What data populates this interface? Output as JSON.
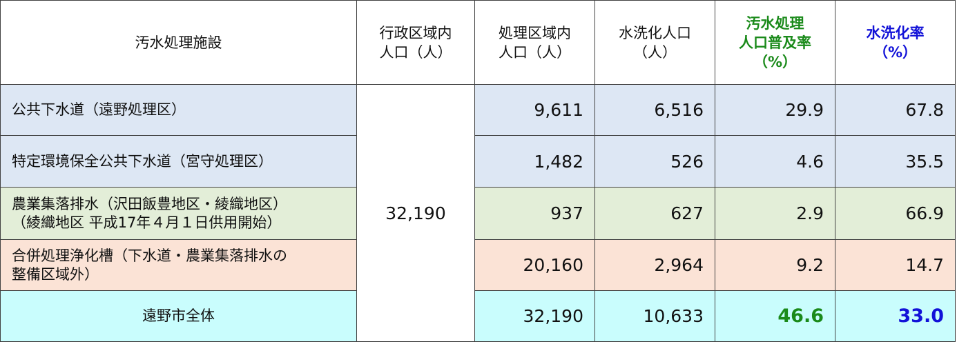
{
  "header": {
    "facility": "汚水処理施設",
    "admin_pop": [
      "行政区域内",
      "人口（人）"
    ],
    "treat_pop": [
      "処理区域内",
      "人口（人）"
    ],
    "flush_pop": [
      "水洗化人口",
      "（人）"
    ],
    "coverage": [
      "汚水処理",
      "人口普及率",
      "（%）"
    ],
    "flush_rate": [
      "水洗化率",
      "（%）"
    ]
  },
  "admin_population": "32,190",
  "rows": [
    {
      "name": [
        "公共下水道（遠野処理区）"
      ],
      "treat_pop": "9,611",
      "flush_pop": "6,516",
      "coverage": "29.9",
      "flush_rate": "67.8"
    },
    {
      "name": [
        "特定環境保全公共下水道（宮守処理区）"
      ],
      "treat_pop": "1,482",
      "flush_pop": "526",
      "coverage": "4.6",
      "flush_rate": "35.5"
    },
    {
      "name": [
        "農業集落排水（沢田飯豊地区・綾織地区）",
        "（綾織地区 平成17年４月１日供用開始）"
      ],
      "treat_pop": "937",
      "flush_pop": "627",
      "coverage": "2.9",
      "flush_rate": "66.9"
    },
    {
      "name": [
        "合併処理浄化槽（下水道・農業集落排水の",
        "整備区域外）"
      ],
      "treat_pop": "20,160",
      "flush_pop": "2,964",
      "coverage": "9.2",
      "flush_rate": "14.7"
    }
  ],
  "total": {
    "name": "遠野市全体",
    "treat_pop": "32,190",
    "flush_pop": "10,633",
    "coverage": "46.6",
    "flush_rate": "33.0"
  },
  "colors": {
    "accent_green": "#1a8a1a",
    "accent_blue": "#1212d8",
    "row_public_sewer": "#dde7f4",
    "row_agri": "#e3eed8",
    "row_septic": "#fbe3d6",
    "row_total": "#c9fdfd"
  }
}
